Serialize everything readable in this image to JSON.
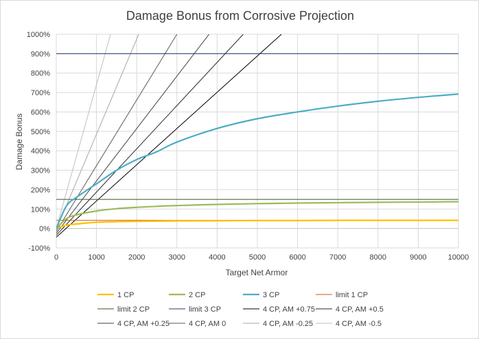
{
  "chart_data": {
    "type": "line",
    "title": "Damage Bonus from Corrosive Projection",
    "xlabel": "Target Net Armor",
    "ylabel": "Damage Bonus",
    "xlim": [
      0,
      10000
    ],
    "ylim": [
      -1,
      10
    ],
    "x_ticks": [
      0,
      1000,
      2000,
      3000,
      4000,
      5000,
      6000,
      7000,
      8000,
      9000,
      10000
    ],
    "x_tick_labels": [
      "0",
      "1000",
      "2000",
      "3000",
      "4000",
      "5000",
      "6000",
      "7000",
      "8000",
      "9000",
      "10000"
    ],
    "y_ticks": [
      -1,
      0,
      1,
      2,
      3,
      4,
      5,
      6,
      7,
      8,
      9,
      10
    ],
    "y_tick_labels": [
      "-100%",
      "0%",
      "100%",
      "200%",
      "300%",
      "400%",
      "500%",
      "600%",
      "700%",
      "800%",
      "900%",
      "1000%"
    ],
    "grid": true,
    "legend_position": "bottom",
    "x": [
      0,
      250,
      500,
      1000,
      1500,
      2000,
      2500,
      3000,
      4000,
      5000,
      6000,
      7000,
      8000,
      9000,
      10000
    ],
    "series": [
      {
        "name": "1 CP",
        "color": "#FFC000",
        "width": 2.2,
        "values": [
          0,
          0.17,
          0.23,
          0.32,
          0.35,
          0.37,
          0.38,
          0.39,
          0.4,
          0.41,
          0.41,
          0.42,
          0.42,
          0.42,
          0.42
        ]
      },
      {
        "name": "2 CP",
        "color": "#9BBB59",
        "width": 2.2,
        "values": [
          0,
          0.5,
          0.7,
          0.9,
          1.02,
          1.09,
          1.14,
          1.18,
          1.24,
          1.28,
          1.31,
          1.33,
          1.35,
          1.36,
          1.38
        ]
      },
      {
        "name": "3 CP",
        "color": "#4BACC6",
        "width": 2.2,
        "values": [
          0,
          1.15,
          1.6,
          2.3,
          3.0,
          3.55,
          3.95,
          4.45,
          5.15,
          5.65,
          6.0,
          6.3,
          6.55,
          6.75,
          6.92
        ]
      },
      {
        "name": "limit 1 CP",
        "color": "#C55A11",
        "width": 1,
        "values": [
          0.42,
          0.42,
          0.42,
          0.42,
          0.42,
          0.42,
          0.42,
          0.42,
          0.42,
          0.42,
          0.42,
          0.42,
          0.42,
          0.42,
          0.42
        ]
      },
      {
        "name": "limit 2 CP",
        "color": "#375623",
        "width": 1,
        "values": [
          1.5,
          1.5,
          1.5,
          1.5,
          1.5,
          1.5,
          1.5,
          1.5,
          1.5,
          1.5,
          1.5,
          1.5,
          1.5,
          1.5,
          1.5
        ]
      },
      {
        "name": "limit 3 CP",
        "color": "#1F3864",
        "width": 1,
        "values": [
          9,
          9,
          9,
          9,
          9,
          9,
          9,
          9,
          9,
          9,
          9,
          9,
          9,
          9,
          9
        ]
      },
      {
        "name": "4 CP, AM +0.75",
        "color": "#000000",
        "width": 1,
        "line": {
          "x_at_y_min": 0,
          "y_at_x_min": -0.45,
          "x_at_y_max": 5600
        }
      },
      {
        "name": "4 CP, AM +0.5",
        "color": "#262626",
        "width": 1,
        "line": {
          "x_at_y_min": 0,
          "y_at_x_min": -0.35,
          "x_at_y_max": 4650
        }
      },
      {
        "name": "4 CP, AM +0.25",
        "color": "#404040",
        "width": 1,
        "line": {
          "x_at_y_min": 0,
          "y_at_x_min": -0.25,
          "x_at_y_max": 3800
        }
      },
      {
        "name": "4 CP, AM 0",
        "color": "#595959",
        "width": 1,
        "line": {
          "x_at_y_min": 0,
          "y_at_x_min": -0.15,
          "x_at_y_max": 3000
        }
      },
      {
        "name": "4 CP, AM -0.25",
        "color": "#A6A6A6",
        "width": 1,
        "line": {
          "x_at_y_min": 0,
          "y_at_x_min": -0.05,
          "x_at_y_max": 2050
        }
      },
      {
        "name": "4 CP, AM -0.5",
        "color": "#BFBFBF",
        "width": 1,
        "line": {
          "x_at_y_min": 0,
          "y_at_x_min": 0,
          "x_at_y_max": 1350
        }
      }
    ]
  }
}
